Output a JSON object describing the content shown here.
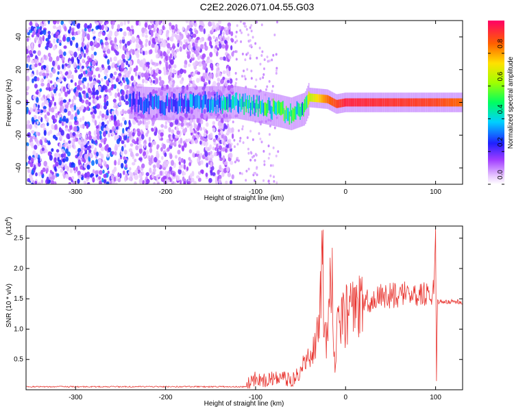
{
  "title": "C2E2.2026.071.04.55.G03",
  "chart_data": [
    {
      "type": "heatmap",
      "title": "C2E2.2026.071.04.55.G03",
      "xlabel": "Height of straight line (km)",
      "ylabel": "Frequency (Hz)",
      "xlim": [
        -355,
        130
      ],
      "ylim": [
        -50,
        50
      ],
      "x_ticks": [
        -300,
        -200,
        -100,
        0,
        100
      ],
      "x_tick_labels": [
        "-300",
        "-200",
        "-100",
        "0",
        "100"
      ],
      "y_ticks": [
        -40,
        -20,
        0,
        20,
        40
      ],
      "y_tick_labels": [
        "-40",
        "-20",
        "0",
        "20",
        "40"
      ],
      "colorbar": {
        "label": "Normalized spectral amplitude",
        "range": [
          0.0,
          1.0
        ],
        "ticks": [
          0.0,
          0.2,
          0.4,
          0.6,
          0.8
        ],
        "tick_labels": [
          "0.0",
          "0.2",
          "0.4",
          "0.6",
          "0.8"
        ]
      },
      "ridge": [
        {
          "x": -240,
          "center": 0,
          "amp": 0.25
        },
        {
          "x": -200,
          "center": -1,
          "amp": 0.3
        },
        {
          "x": -150,
          "center": 0,
          "amp": 0.35
        },
        {
          "x": -120,
          "center": 0,
          "amp": 0.45
        },
        {
          "x": -100,
          "center": -2,
          "amp": 0.5
        },
        {
          "x": -75,
          "center": -5,
          "amp": 0.5
        },
        {
          "x": -60,
          "center": -7,
          "amp": 0.5
        },
        {
          "x": -45,
          "center": -4,
          "amp": 0.45
        },
        {
          "x": -40,
          "center": 3,
          "amp": 0.65
        },
        {
          "x": -20,
          "center": 2,
          "amp": 0.85
        },
        {
          "x": -10,
          "center": -1,
          "amp": 0.9
        },
        {
          "x": 0,
          "center": 0,
          "amp": 0.95
        },
        {
          "x": 100,
          "center": 0,
          "amp": 0.9
        },
        {
          "x": 130,
          "center": 0,
          "amp": 0.85
        }
      ]
    },
    {
      "type": "line",
      "xlabel": "Height of straight line (km)",
      "ylabel": "SNR (10 * v/v)",
      "scale_label": "(x10",
      "scale_exponent": "4",
      "xlim": [
        -355,
        130
      ],
      "ylim": [
        0.0,
        2.7
      ],
      "x_ticks": [
        -300,
        -200,
        -100,
        0,
        100
      ],
      "x_tick_labels": [
        "-300",
        "-200",
        "-100",
        "0",
        "100"
      ],
      "y_ticks": [
        0.5,
        1.0,
        1.5,
        2.0,
        2.5
      ],
      "y_tick_labels": [
        "0.5",
        "1.0",
        "1.5",
        "2.0",
        "2.5"
      ],
      "color": "#e8332e",
      "series": [
        {
          "name": "SNR",
          "x": [
            -355,
            -300,
            -250,
            -200,
            -150,
            -110,
            -100,
            -90,
            -80,
            -70,
            -60,
            -50,
            -45,
            -40,
            -35,
            -30,
            -25,
            -24,
            -20,
            -15,
            -12,
            -10,
            -5,
            0,
            10,
            20,
            30,
            40,
            50,
            60,
            70,
            80,
            90,
            98,
            100,
            101,
            102,
            103,
            105,
            110,
            120,
            130
          ],
          "y": [
            0.05,
            0.05,
            0.05,
            0.05,
            0.05,
            0.06,
            0.2,
            0.15,
            0.2,
            0.2,
            0.15,
            0.3,
            0.5,
            0.5,
            0.8,
            1.0,
            2.15,
            0.8,
            1.0,
            1.9,
            0.3,
            1.0,
            1.1,
            1.2,
            1.3,
            1.4,
            1.5,
            1.55,
            1.55,
            1.55,
            1.6,
            1.6,
            1.55,
            1.6,
            2.65,
            0.15,
            1.5,
            1.45,
            1.45,
            1.45,
            1.45,
            1.45
          ]
        }
      ]
    }
  ],
  "colors": {
    "snr_line": "#e8332e",
    "background": "#ffffff"
  }
}
